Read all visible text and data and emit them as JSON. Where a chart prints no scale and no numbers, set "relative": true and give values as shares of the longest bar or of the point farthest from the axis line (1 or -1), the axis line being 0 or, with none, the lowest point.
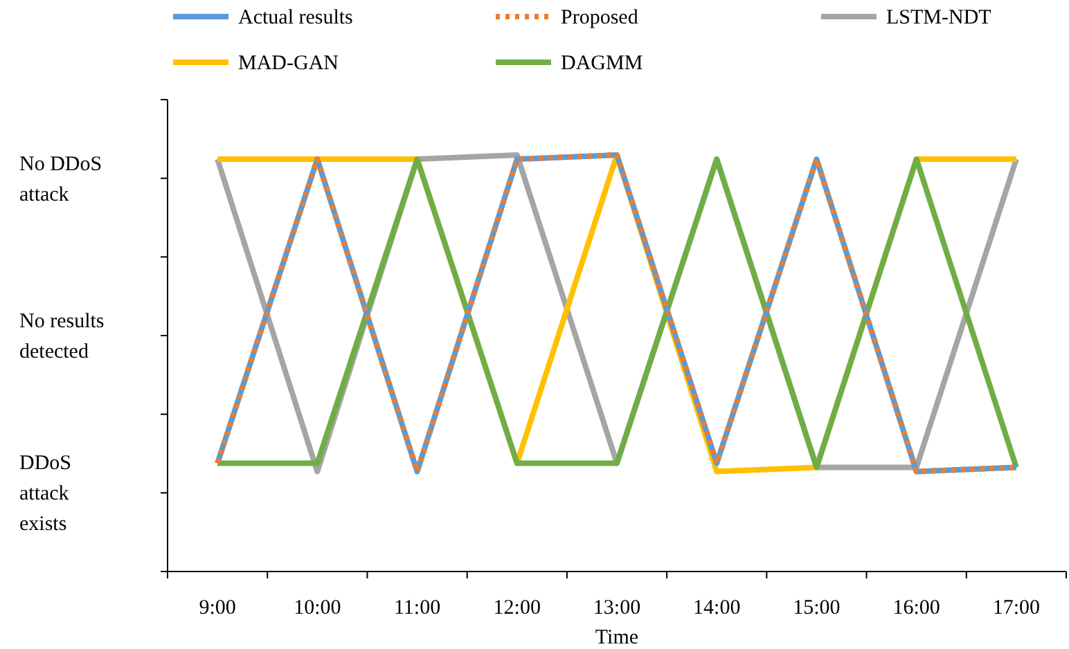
{
  "chart_data": {
    "type": "line",
    "xlabel": "Time",
    "relative": true,
    "categories": [
      "9:00",
      "10:00",
      "11:00",
      "12:00",
      "13:00",
      "14:00",
      "15:00",
      "16:00",
      "17:00"
    ],
    "annotations": [
      "No DDoS attack",
      "No results detected",
      "DDoS attack exists"
    ],
    "legend": "top",
    "marker": "none",
    "series": [
      {
        "name": "Actual results",
        "color": "#5b9bd5",
        "line_style": "solid",
        "values": [
          0.26,
          0.99,
          0.24,
          0.99,
          1.0,
          0.26,
          0.99,
          0.24,
          0.25
        ]
      },
      {
        "name": "Proposed",
        "color": "#ed7d31",
        "line_style": "dotted",
        "values": [
          0.26,
          0.99,
          0.24,
          0.99,
          1.0,
          0.26,
          0.99,
          0.24,
          0.25
        ]
      },
      {
        "name": "LSTM-NDT",
        "color": "#a5a5a5",
        "line_style": "solid",
        "values": [
          0.99,
          0.24,
          0.99,
          1.0,
          0.26,
          0.99,
          0.25,
          0.25,
          0.99
        ]
      },
      {
        "name": "MAD-GAN",
        "color": "#ffc000",
        "line_style": "solid",
        "values": [
          0.99,
          0.99,
          0.99,
          0.26,
          1.0,
          0.24,
          0.25,
          0.99,
          0.99
        ]
      },
      {
        "name": "DAGMM",
        "color": "#70ad47",
        "line_style": "solid",
        "values": [
          0.26,
          0.26,
          0.99,
          0.26,
          0.26,
          0.99,
          0.25,
          0.99,
          0.25
        ]
      }
    ]
  }
}
